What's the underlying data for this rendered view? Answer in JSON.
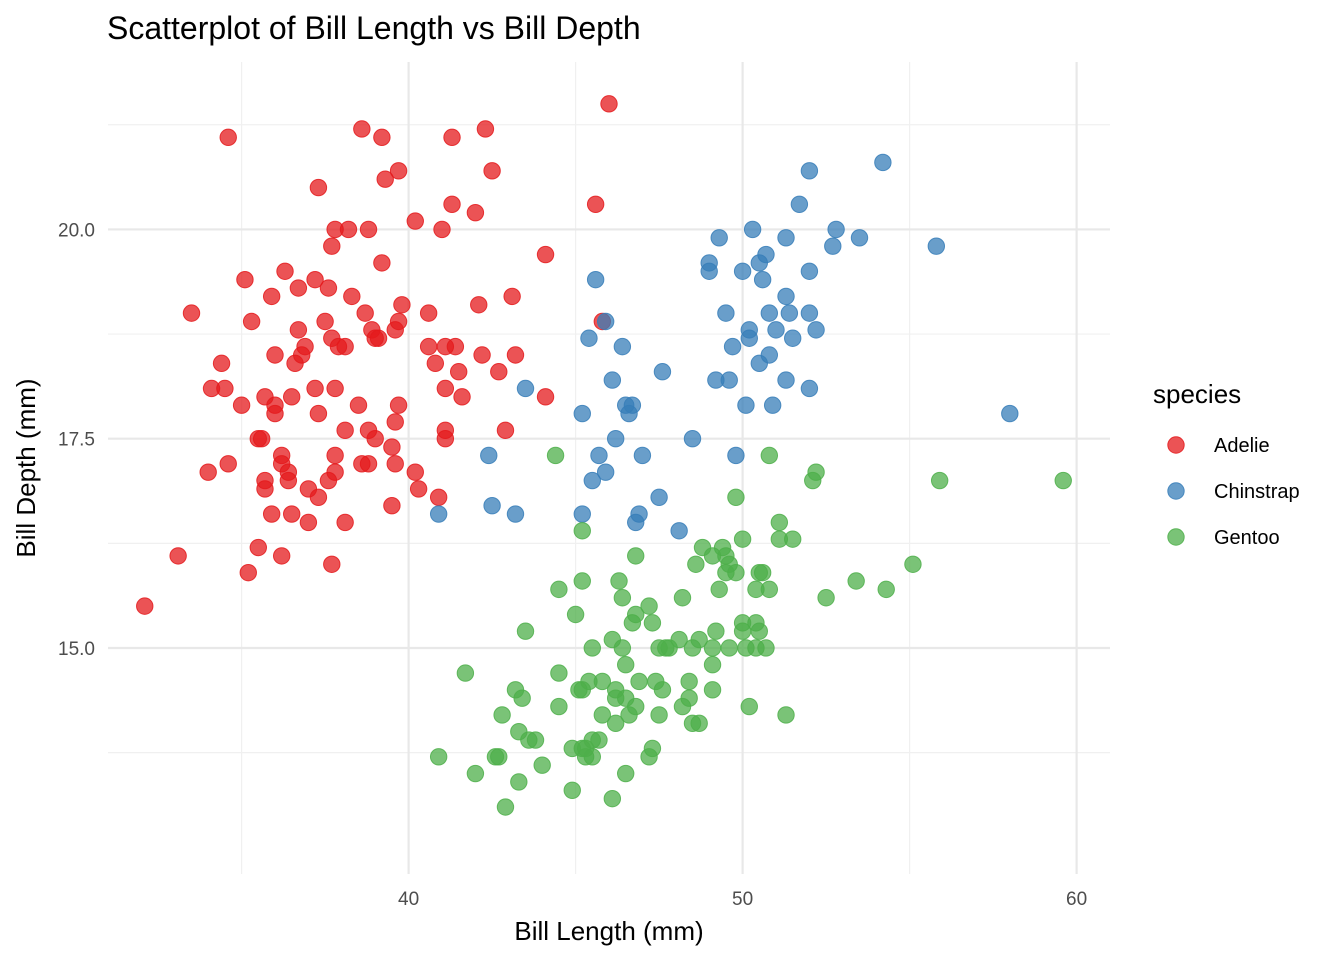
{
  "chart_data": {
    "type": "scatter",
    "title": "Scatterplot of Bill Length vs Bill Depth",
    "xlabel": "Bill Length (mm)",
    "ylabel": "Bill Depth (mm)",
    "xlim": [
      31.0,
      61.0
    ],
    "ylim": [
      12.3,
      22.0
    ],
    "x_ticks": [
      40,
      50,
      60
    ],
    "x_tick_labels": [
      "40",
      "50",
      "60"
    ],
    "y_ticks": [
      15.0,
      17.5,
      20.0
    ],
    "y_tick_labels": [
      "15.0",
      "17.5",
      "20.0"
    ],
    "grid": true,
    "legend": {
      "title": "species",
      "position": "right"
    },
    "series": [
      {
        "name": "Adelie",
        "color": "#e41a1c",
        "points": [
          [
            32.1,
            15.5
          ],
          [
            33.1,
            16.1
          ],
          [
            33.5,
            19.0
          ],
          [
            34.0,
            17.1
          ],
          [
            34.1,
            18.1
          ],
          [
            34.4,
            18.4
          ],
          [
            34.5,
            18.1
          ],
          [
            34.6,
            21.1
          ],
          [
            34.6,
            17.2
          ],
          [
            35.0,
            17.9
          ],
          [
            35.1,
            19.4
          ],
          [
            35.2,
            15.9
          ],
          [
            35.3,
            18.9
          ],
          [
            35.5,
            16.2
          ],
          [
            35.5,
            17.5
          ],
          [
            35.6,
            17.5
          ],
          [
            35.7,
            17.0
          ],
          [
            35.7,
            16.9
          ],
          [
            35.7,
            18.0
          ],
          [
            35.9,
            16.6
          ],
          [
            35.9,
            19.2
          ],
          [
            36.0,
            17.9
          ],
          [
            36.0,
            17.8
          ],
          [
            36.0,
            18.5
          ],
          [
            36.2,
            16.1
          ],
          [
            36.2,
            17.3
          ],
          [
            36.2,
            17.2
          ],
          [
            36.3,
            19.5
          ],
          [
            36.4,
            17.1
          ],
          [
            36.4,
            17.0
          ],
          [
            36.5,
            16.6
          ],
          [
            36.5,
            18.0
          ],
          [
            36.6,
            18.4
          ],
          [
            36.7,
            19.3
          ],
          [
            36.7,
            18.8
          ],
          [
            36.8,
            18.5
          ],
          [
            36.9,
            18.6
          ],
          [
            37.0,
            16.9
          ],
          [
            37.0,
            16.5
          ],
          [
            37.2,
            19.4
          ],
          [
            37.2,
            18.1
          ],
          [
            37.3,
            17.8
          ],
          [
            37.3,
            20.5
          ],
          [
            37.3,
            16.8
          ],
          [
            37.5,
            18.9
          ],
          [
            37.6,
            17.0
          ],
          [
            37.6,
            19.3
          ],
          [
            37.7,
            18.7
          ],
          [
            37.7,
            19.8
          ],
          [
            37.7,
            16.0
          ],
          [
            37.8,
            17.1
          ],
          [
            37.8,
            17.3
          ],
          [
            37.8,
            18.1
          ],
          [
            37.8,
            20.0
          ],
          [
            37.9,
            18.6
          ],
          [
            38.1,
            18.6
          ],
          [
            38.1,
            16.5
          ],
          [
            38.1,
            17.6
          ],
          [
            38.2,
            20.0
          ],
          [
            38.3,
            19.2
          ],
          [
            38.5,
            17.9
          ],
          [
            38.6,
            21.2
          ],
          [
            38.6,
            17.2
          ],
          [
            38.7,
            19.0
          ],
          [
            38.8,
            17.2
          ],
          [
            38.8,
            17.6
          ],
          [
            38.8,
            20.0
          ],
          [
            38.9,
            18.8
          ],
          [
            39.0,
            17.5
          ],
          [
            39.0,
            18.7
          ],
          [
            39.1,
            18.7
          ],
          [
            39.2,
            19.6
          ],
          [
            39.2,
            21.1
          ],
          [
            39.3,
            20.6
          ],
          [
            39.5,
            17.4
          ],
          [
            39.5,
            16.7
          ],
          [
            39.6,
            17.7
          ],
          [
            39.6,
            18.8
          ],
          [
            39.6,
            17.2
          ],
          [
            39.7,
            20.7
          ],
          [
            39.7,
            17.9
          ],
          [
            39.7,
            18.9
          ],
          [
            39.8,
            19.1
          ],
          [
            40.2,
            20.1
          ],
          [
            40.2,
            17.1
          ],
          [
            40.3,
            16.9
          ],
          [
            40.6,
            19.0
          ],
          [
            40.6,
            18.6
          ],
          [
            40.8,
            18.4
          ],
          [
            40.9,
            16.8
          ],
          [
            41.0,
            20.0
          ],
          [
            41.1,
            18.1
          ],
          [
            41.1,
            18.6
          ],
          [
            41.1,
            17.6
          ],
          [
            41.1,
            17.5
          ],
          [
            41.3,
            21.1
          ],
          [
            41.3,
            20.3
          ],
          [
            41.4,
            18.6
          ],
          [
            41.5,
            18.3
          ],
          [
            41.6,
            18.0
          ],
          [
            42.0,
            20.2
          ],
          [
            42.1,
            19.1
          ],
          [
            42.2,
            18.5
          ],
          [
            42.3,
            21.2
          ],
          [
            42.5,
            20.7
          ],
          [
            42.7,
            18.3
          ],
          [
            42.9,
            17.6
          ],
          [
            43.1,
            19.2
          ],
          [
            43.2,
            18.5
          ],
          [
            44.1,
            19.7
          ],
          [
            44.1,
            18.0
          ],
          [
            45.6,
            20.3
          ],
          [
            45.8,
            18.9
          ],
          [
            46.0,
            21.5
          ]
        ]
      },
      {
        "name": "Chinstrap",
        "color": "#377eb8",
        "points": [
          [
            40.9,
            16.6
          ],
          [
            42.4,
            17.3
          ],
          [
            42.5,
            16.7
          ],
          [
            43.2,
            16.6
          ],
          [
            43.5,
            18.1
          ],
          [
            45.2,
            17.8
          ],
          [
            45.2,
            16.6
          ],
          [
            45.4,
            18.7
          ],
          [
            45.5,
            17.0
          ],
          [
            45.6,
            19.4
          ],
          [
            45.7,
            17.3
          ],
          [
            45.9,
            17.1
          ],
          [
            45.9,
            18.9
          ],
          [
            46.1,
            18.2
          ],
          [
            46.2,
            17.5
          ],
          [
            46.4,
            18.6
          ],
          [
            46.5,
            17.9
          ],
          [
            46.6,
            17.8
          ],
          [
            46.7,
            17.9
          ],
          [
            46.8,
            16.5
          ],
          [
            46.9,
            16.6
          ],
          [
            47.0,
            17.3
          ],
          [
            47.5,
            16.8
          ],
          [
            47.6,
            18.3
          ],
          [
            48.1,
            16.4
          ],
          [
            48.5,
            17.5
          ],
          [
            49.0,
            19.5
          ],
          [
            49.0,
            19.6
          ],
          [
            49.2,
            18.2
          ],
          [
            49.3,
            19.9
          ],
          [
            49.5,
            19.0
          ],
          [
            49.6,
            18.2
          ],
          [
            49.7,
            18.6
          ],
          [
            49.8,
            17.3
          ],
          [
            50.0,
            19.5
          ],
          [
            50.1,
            17.9
          ],
          [
            50.2,
            18.8
          ],
          [
            50.2,
            18.7
          ],
          [
            50.3,
            20.0
          ],
          [
            50.5,
            18.4
          ],
          [
            50.5,
            19.6
          ],
          [
            50.6,
            19.4
          ],
          [
            50.7,
            19.7
          ],
          [
            50.8,
            18.5
          ],
          [
            50.8,
            19.0
          ],
          [
            50.9,
            17.9
          ],
          [
            51.0,
            18.8
          ],
          [
            51.3,
            18.2
          ],
          [
            51.3,
            19.2
          ],
          [
            51.3,
            19.9
          ],
          [
            51.4,
            19.0
          ],
          [
            51.5,
            18.7
          ],
          [
            51.7,
            20.3
          ],
          [
            52.0,
            19.5
          ],
          [
            52.0,
            18.1
          ],
          [
            52.0,
            20.7
          ],
          [
            52.0,
            19.0
          ],
          [
            52.2,
            18.8
          ],
          [
            52.7,
            19.8
          ],
          [
            52.8,
            20.0
          ],
          [
            53.5,
            19.9
          ],
          [
            54.2,
            20.8
          ],
          [
            55.8,
            19.8
          ],
          [
            58.0,
            17.8
          ]
        ]
      },
      {
        "name": "Gentoo",
        "color": "#4daf4a",
        "points": [
          [
            40.9,
            13.7
          ],
          [
            41.7,
            14.7
          ],
          [
            42.0,
            13.5
          ],
          [
            42.6,
            13.7
          ],
          [
            42.7,
            13.7
          ],
          [
            42.8,
            14.2
          ],
          [
            42.9,
            13.1
          ],
          [
            43.2,
            14.5
          ],
          [
            43.3,
            13.4
          ],
          [
            43.3,
            14.0
          ],
          [
            43.4,
            14.4
          ],
          [
            43.5,
            15.2
          ],
          [
            43.6,
            13.9
          ],
          [
            43.8,
            13.9
          ],
          [
            44.0,
            13.6
          ],
          [
            44.4,
            17.3
          ],
          [
            44.5,
            15.7
          ],
          [
            44.5,
            14.7
          ],
          [
            44.5,
            14.3
          ],
          [
            44.9,
            13.8
          ],
          [
            44.9,
            13.3
          ],
          [
            45.0,
            15.4
          ],
          [
            45.1,
            14.5
          ],
          [
            45.2,
            14.5
          ],
          [
            45.2,
            16.4
          ],
          [
            45.2,
            15.8
          ],
          [
            45.2,
            13.8
          ],
          [
            45.3,
            13.7
          ],
          [
            45.3,
            13.8
          ],
          [
            45.4,
            14.6
          ],
          [
            45.5,
            13.7
          ],
          [
            45.5,
            13.9
          ],
          [
            45.5,
            15.0
          ],
          [
            45.7,
            13.9
          ],
          [
            45.8,
            14.2
          ],
          [
            45.8,
            14.6
          ],
          [
            46.1,
            13.2
          ],
          [
            46.1,
            15.1
          ],
          [
            46.2,
            14.1
          ],
          [
            46.2,
            14.4
          ],
          [
            46.2,
            14.5
          ],
          [
            46.3,
            15.8
          ],
          [
            46.4,
            15.0
          ],
          [
            46.4,
            15.6
          ],
          [
            46.5,
            13.5
          ],
          [
            46.5,
            14.4
          ],
          [
            46.5,
            14.8
          ],
          [
            46.6,
            14.2
          ],
          [
            46.7,
            15.3
          ],
          [
            46.8,
            14.3
          ],
          [
            46.8,
            15.4
          ],
          [
            46.8,
            16.1
          ],
          [
            46.9,
            14.6
          ],
          [
            47.2,
            13.7
          ],
          [
            47.2,
            15.5
          ],
          [
            47.3,
            13.8
          ],
          [
            47.3,
            15.3
          ],
          [
            47.4,
            14.6
          ],
          [
            47.5,
            14.2
          ],
          [
            47.5,
            15.0
          ],
          [
            47.6,
            14.5
          ],
          [
            47.7,
            15.0
          ],
          [
            47.8,
            15.0
          ],
          [
            48.1,
            15.1
          ],
          [
            48.2,
            14.3
          ],
          [
            48.2,
            15.6
          ],
          [
            48.4,
            14.4
          ],
          [
            48.4,
            14.6
          ],
          [
            48.5,
            14.1
          ],
          [
            48.5,
            15.0
          ],
          [
            48.6,
            16.0
          ],
          [
            48.7,
            14.1
          ],
          [
            48.7,
            15.1
          ],
          [
            48.8,
            16.2
          ],
          [
            49.1,
            14.5
          ],
          [
            49.1,
            14.8
          ],
          [
            49.1,
            15.0
          ],
          [
            49.1,
            16.1
          ],
          [
            49.2,
            15.2
          ],
          [
            49.3,
            15.7
          ],
          [
            49.4,
            16.2
          ],
          [
            49.5,
            15.9
          ],
          [
            49.5,
            16.1
          ],
          [
            49.6,
            15.0
          ],
          [
            49.6,
            16.0
          ],
          [
            49.8,
            15.9
          ],
          [
            49.8,
            16.8
          ],
          [
            50.0,
            15.2
          ],
          [
            50.0,
            15.3
          ],
          [
            50.0,
            16.3
          ],
          [
            50.1,
            15.0
          ],
          [
            50.2,
            14.3
          ],
          [
            50.4,
            15.0
          ],
          [
            50.4,
            15.3
          ],
          [
            50.4,
            15.7
          ],
          [
            50.5,
            15.2
          ],
          [
            50.5,
            15.9
          ],
          [
            50.6,
            15.9
          ],
          [
            50.7,
            15.0
          ],
          [
            50.8,
            15.7
          ],
          [
            50.8,
            17.3
          ],
          [
            51.1,
            16.3
          ],
          [
            51.1,
            16.5
          ],
          [
            51.3,
            14.2
          ],
          [
            51.5,
            16.3
          ],
          [
            52.1,
            17.0
          ],
          [
            52.2,
            17.1
          ],
          [
            52.5,
            15.6
          ],
          [
            53.4,
            15.8
          ],
          [
            54.3,
            15.7
          ],
          [
            55.1,
            16.0
          ],
          [
            55.9,
            17.0
          ],
          [
            59.6,
            17.0
          ]
        ]
      }
    ]
  }
}
